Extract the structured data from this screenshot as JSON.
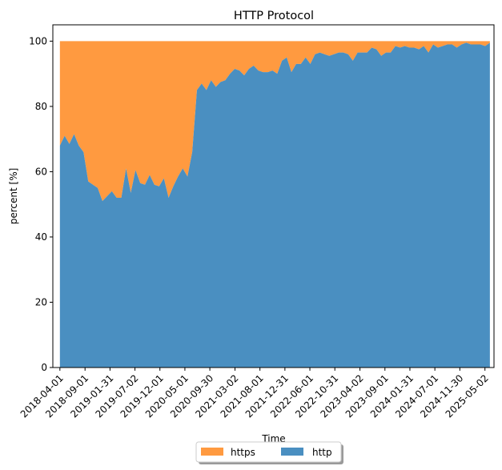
{
  "chart_data": {
    "type": "area",
    "stacked": true,
    "title": "HTTP Protocol",
    "xlabel": "Time",
    "ylabel": "percent [%]",
    "ylim": [
      0,
      105
    ],
    "yticks": [
      0,
      20,
      40,
      60,
      80,
      100
    ],
    "xlim": [
      "2018-02-17",
      "2025-06-26"
    ],
    "x_start": "2018-04-01",
    "x_end": "2025-06-01",
    "xtick_labels": [
      "2018-04-01",
      "2018-09-01",
      "2019-01-31",
      "2019-07-02",
      "2019-12-01",
      "2020-05-01",
      "2020-09-30",
      "2021-03-02",
      "2021-08-01",
      "2021-12-31",
      "2022-06-01",
      "2022-10-31",
      "2023-04-02",
      "2023-09-01",
      "2024-01-31",
      "2024-07-01",
      "2024-11-30",
      "2025-05-02"
    ],
    "grid": false,
    "legend": {
      "position": "bottom-center",
      "columns": 2
    },
    "colors": {
      "https": "#ff9a40",
      "http": "#4a8fc1"
    },
    "series": [
      {
        "name": "https",
        "values": [
          32,
          29,
          31.5,
          28.5,
          32,
          34,
          43,
          44,
          45,
          49,
          47.5,
          46,
          48,
          48,
          39,
          46.5,
          39.5,
          43.5,
          44,
          41,
          44,
          44.5,
          42,
          48,
          44.5,
          41.5,
          39,
          41.5,
          34,
          15,
          13,
          15,
          12,
          14,
          12.5,
          12,
          10,
          8.5,
          9,
          10.5,
          8.5,
          7.5,
          9,
          9.5,
          9.5,
          9,
          10,
          6,
          5,
          9.5,
          7,
          7,
          5,
          7,
          4,
          3.5,
          4,
          4.5,
          4,
          3.5,
          3.5,
          4,
          6,
          3.5,
          3.5,
          3.5,
          2,
          2.5,
          4.5,
          3.5,
          3.5,
          1.5,
          2,
          1.5,
          2,
          2,
          2.5,
          1.5,
          3.5,
          1,
          2,
          1.5,
          1,
          1,
          2,
          1,
          0.5,
          1,
          1,
          1,
          1.5,
          0.5
        ]
      },
      {
        "name": "http",
        "values": [
          68,
          71,
          68.5,
          71.5,
          68,
          66,
          57,
          56,
          55,
          51,
          52.5,
          54,
          52,
          52,
          61,
          53.5,
          60.5,
          56.5,
          56,
          59,
          56,
          55.5,
          58,
          52,
          55.5,
          58.5,
          61,
          58.5,
          66,
          85,
          87,
          85,
          88,
          86,
          87.5,
          88,
          90,
          91.5,
          91,
          89.5,
          91.5,
          92.5,
          91,
          90.5,
          90.5,
          91,
          90,
          94,
          95,
          90.5,
          93,
          93,
          95,
          93,
          96,
          96.5,
          96,
          95.5,
          96,
          96.5,
          96.5,
          96,
          94,
          96.5,
          96.5,
          96.5,
          98,
          97.5,
          95.5,
          96.5,
          96.5,
          98.5,
          98,
          98.5,
          98,
          98,
          97.5,
          98.5,
          96.5,
          99,
          98,
          98.5,
          99,
          99,
          98,
          99,
          99.5,
          99,
          99,
          99,
          98.5,
          99.5
        ]
      }
    ]
  }
}
